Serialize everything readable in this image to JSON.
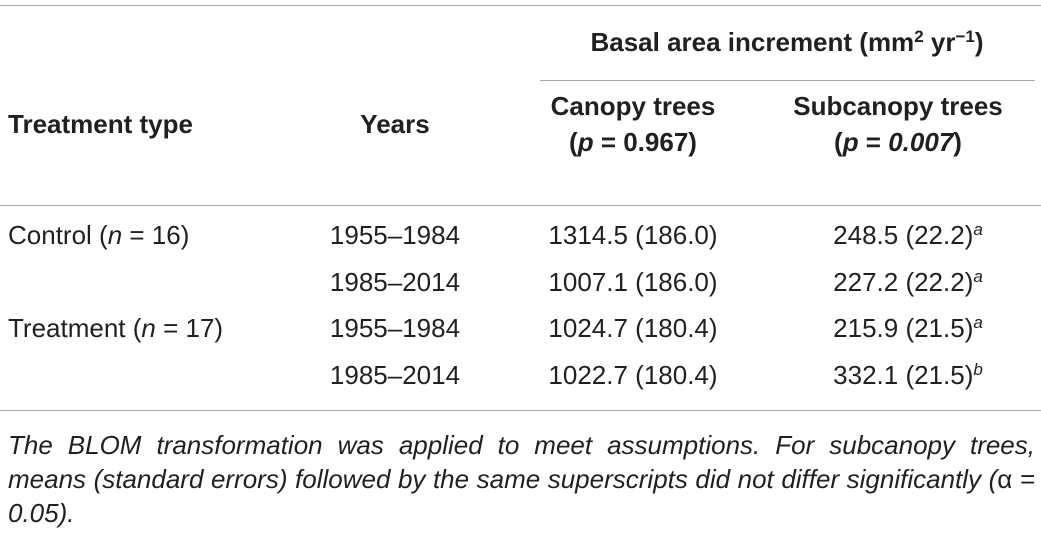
{
  "table": {
    "spanner": [
      "Basal area increment (mm",
      {
        "text": "2",
        "style": "sup"
      },
      " yr",
      {
        "text": "−1",
        "style": "sup"
      },
      ")"
    ],
    "header": [
      [
        [
          "Treatment type"
        ]
      ],
      [
        [
          "Years"
        ]
      ],
      [
        [
          "Canopy trees"
        ],
        [
          "(",
          {
            "text": "p",
            "style": "i"
          },
          " = 0.967)"
        ]
      ],
      [
        [
          "Subcanopy trees"
        ],
        [
          "(",
          {
            "text": "p",
            "style": "i"
          },
          " = ",
          {
            "text": "0.007",
            "style": "i"
          },
          ")"
        ]
      ]
    ],
    "rows": [
      [
        [
          "Control (",
          {
            "text": "n",
            "style": "i"
          },
          " = 16)"
        ],
        [
          "1955–1984"
        ],
        [
          "1314.5 (186.0)"
        ],
        [
          "248.5 (22.2)",
          {
            "text": "a",
            "style": "sup-i"
          }
        ]
      ],
      [
        null,
        [
          "1985–2014"
        ],
        [
          "1007.1 (186.0)"
        ],
        [
          "227.2 (22.2)",
          {
            "text": "a",
            "style": "sup-i"
          }
        ]
      ],
      [
        [
          "Treatment (",
          {
            "text": "n",
            "style": "i"
          },
          " = 17)"
        ],
        [
          "1955–1984"
        ],
        [
          "1024.7 (180.4)"
        ],
        [
          "215.9 (21.5)",
          {
            "text": "a",
            "style": "sup-i"
          }
        ]
      ],
      [
        null,
        [
          "1985–2014"
        ],
        [
          "1022.7 (180.4)"
        ],
        [
          "332.1 (21.5)",
          {
            "text": "b",
            "style": "sup-i"
          }
        ]
      ]
    ],
    "footnote": [
      {
        "text": "The BLOM transformation was applied to meet assumptions. For subcanopy trees, means (standard errors) followed by the same superscripts did not differ significantly (",
        "style": "i"
      },
      "α",
      {
        "text": " = 0.05).",
        "style": "i"
      }
    ]
  }
}
